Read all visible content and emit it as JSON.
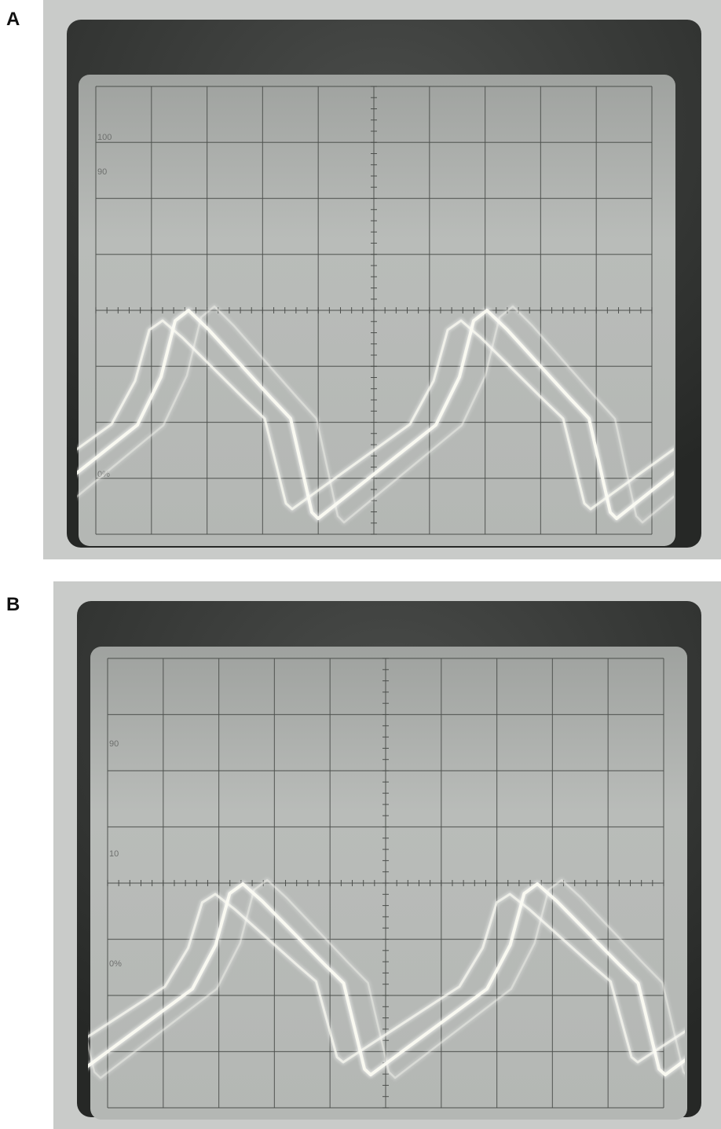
{
  "panels": [
    {
      "label": "A",
      "scale_labels": [
        "100",
        "90",
        "0%"
      ]
    },
    {
      "label": "B",
      "scale_labels": [
        "90",
        "10",
        "0%"
      ]
    }
  ]
}
